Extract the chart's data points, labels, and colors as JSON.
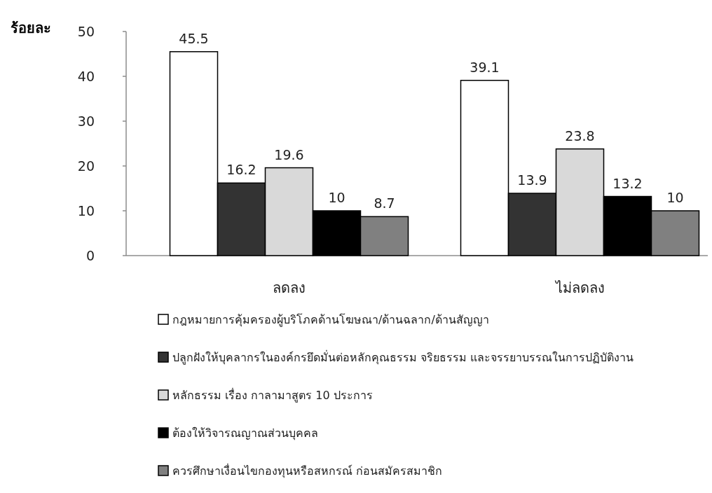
{
  "chart_data": {
    "type": "bar",
    "ylabel": "ร้อยละ",
    "categories": [
      "ลดลง",
      "ไม่ลดลง"
    ],
    "series": [
      {
        "name": "กฎหมายการคุ้มครองผู้บริโภคด้านโฆษณา/ด้านฉลาก/ด้านสัญญา",
        "color": "#ffffff",
        "values": [
          45.5,
          39.1
        ]
      },
      {
        "name": "ปลูกฝังให้บุคลากรในองค์กรยึดมั่นต่อหลักคุณธรรม จริยธรรม และจรรยาบรรณในการปฏิบัติงาน",
        "color": "#333333",
        "values": [
          16.2,
          13.9
        ]
      },
      {
        "name": "หลักธรรม เรื่อง กาลามาสูตร 10 ประการ",
        "color": "#d9d9d9",
        "values": [
          19.6,
          23.8
        ]
      },
      {
        "name": "ต้องให้วิจารณญาณส่วนบุคคล",
        "color": "#000000",
        "values": [
          10,
          13.2
        ]
      },
      {
        "name": "ควรศึกษาเงื่อนไขกองทุนหรือสหกรณ์  ก่อนสมัครสมาชิก",
        "color": "#808080",
        "values": [
          8.7,
          10
        ]
      }
    ],
    "ylim": [
      0,
      50
    ],
    "yticks": [
      0,
      10,
      20,
      30,
      40,
      50
    ],
    "data_labels": true,
    "grid": false,
    "legend": "bottom"
  }
}
